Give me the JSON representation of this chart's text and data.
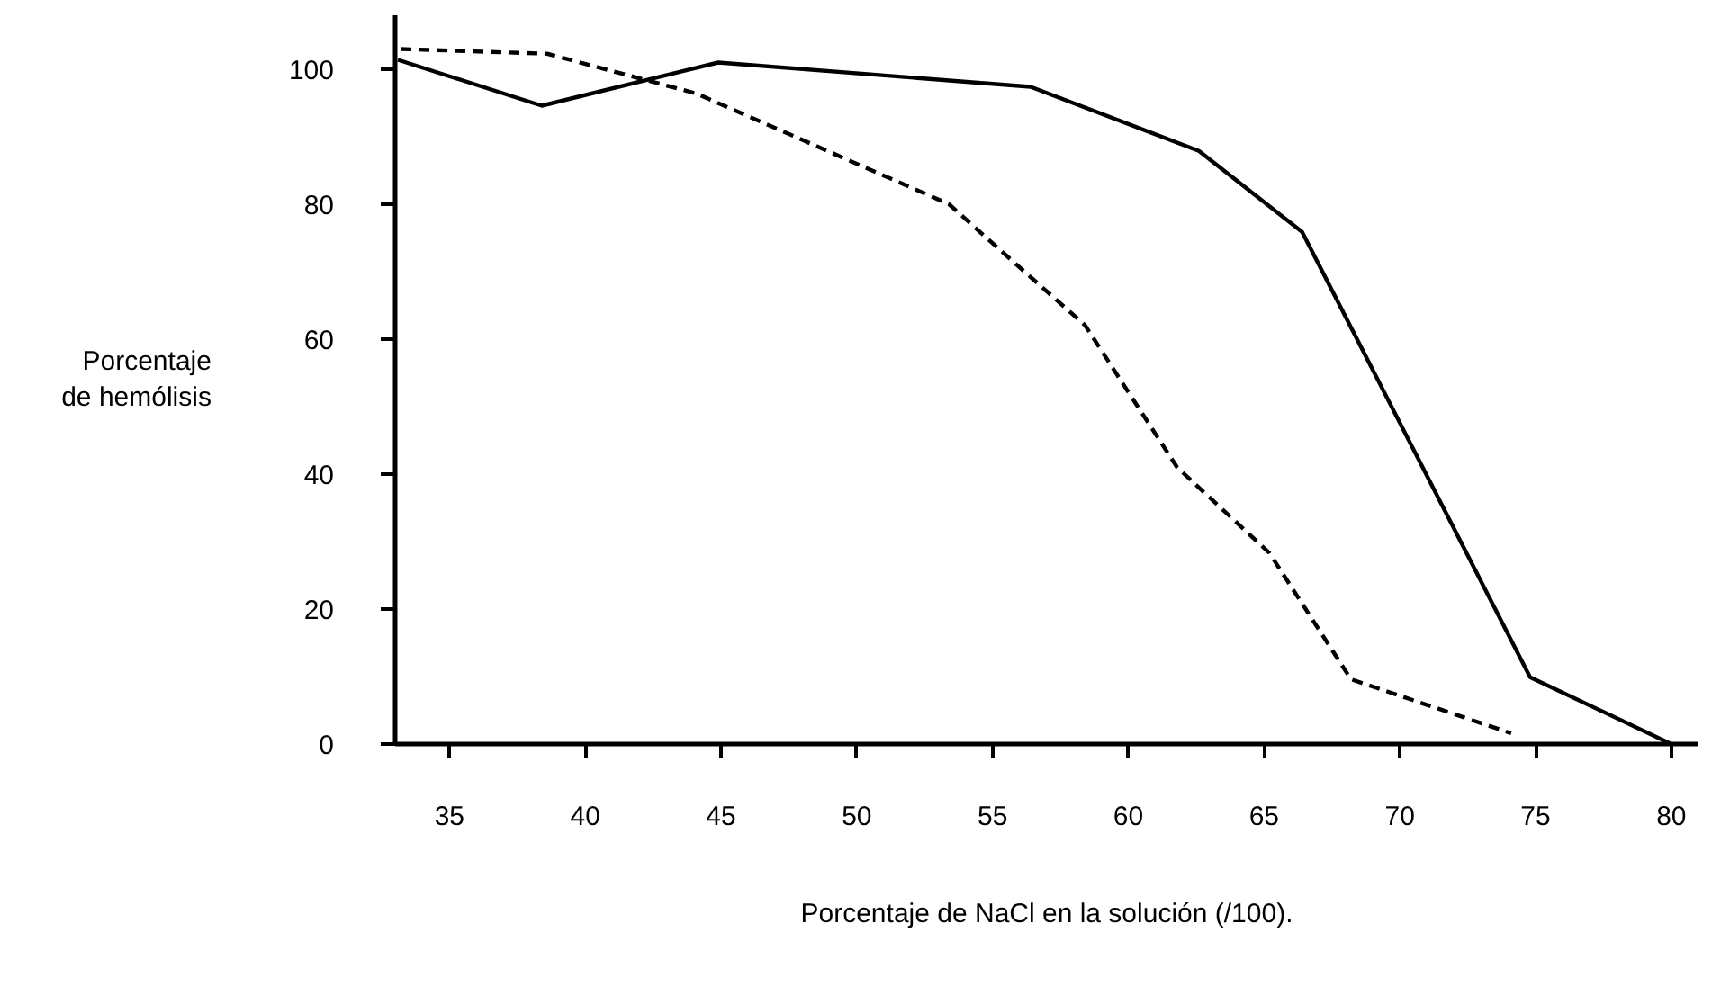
{
  "chart_data": {
    "type": "line",
    "xlabel": "Porcentaje de NaCl en la solución (/100).",
    "ylabel": "Porcentaje\nde hemólisis",
    "series": [
      {
        "color": "#000000",
        "line_style": "solid",
        "x": [
          33.1,
          38.4,
          44.9,
          56.4,
          62.6,
          66.4,
          74.8,
          80
        ],
        "values": [
          101.4,
          94.6,
          101,
          97.4,
          87.9,
          75.9,
          9.9,
          0
        ]
      },
      {
        "color": "#000000",
        "line_style": "dashed",
        "x": [
          33.2,
          38.6,
          44.1,
          53.4,
          55.7,
          58.4,
          61.8,
          65.2,
          68.2,
          74.1
        ],
        "values": [
          103,
          102.3,
          96.4,
          80,
          71.7,
          62.1,
          41,
          28.3,
          9.6,
          1.6
        ]
      }
    ],
    "xlim": [
      33,
      81
    ],
    "ylim": [
      0,
      108
    ],
    "xticks": [
      35,
      40,
      45,
      50,
      55,
      60,
      65,
      70,
      75,
      80
    ],
    "yticks": [
      0,
      20,
      40,
      60,
      80,
      100
    ],
    "grid": false,
    "marker": "none"
  }
}
